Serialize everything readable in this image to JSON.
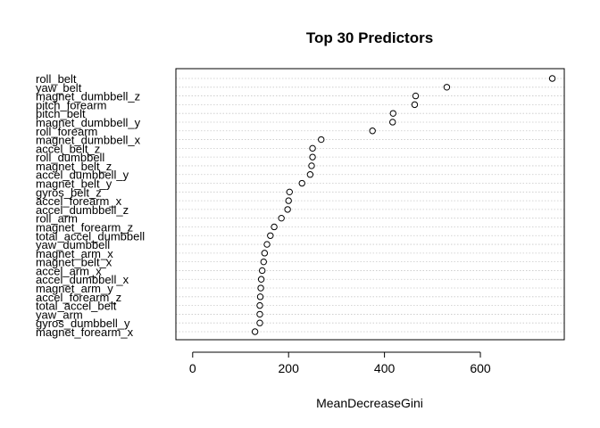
{
  "chart_data": {
    "type": "scatter",
    "title": "Top 30 Predictors",
    "xlabel": "MeanDecreaseGini",
    "ylabel": "",
    "xlim": [
      -35,
      775
    ],
    "x_ticks": [
      0,
      200,
      400,
      600
    ],
    "grid": "dotted horizontal guide lines per predictor",
    "categories": [
      "roll_belt",
      "yaw_belt",
      "magnet_dumbbell_z",
      "pitch_forearm",
      "pitch_belt",
      "magnet_dumbbell_y",
      "roll_forearm",
      "magnet_dumbbell_x",
      "accel_belt_z",
      "roll_dumbbell",
      "magnet_belt_z",
      "accel_dumbbell_y",
      "magnet_belt_y",
      "gyros_belt_z",
      "accel_forearm_x",
      "accel_dumbbell_z",
      "roll_arm",
      "magnet_forearm_z",
      "total_accel_dumbbell",
      "yaw_dumbbell",
      "magnet_arm_x",
      "magnet_belt_x",
      "accel_arm_x",
      "accel_dumbbell_x",
      "magnet_arm_y",
      "accel_forearm_z",
      "total_accel_belt",
      "yaw_arm",
      "gyros_dumbbell_y",
      "magnet_forearm_x"
    ],
    "values": [
      750,
      530,
      465,
      463,
      418,
      417,
      375,
      268,
      250,
      250,
      248,
      245,
      228,
      202,
      200,
      198,
      185,
      170,
      162,
      155,
      150,
      148,
      145,
      143,
      142,
      141,
      140,
      140,
      140,
      130
    ]
  }
}
